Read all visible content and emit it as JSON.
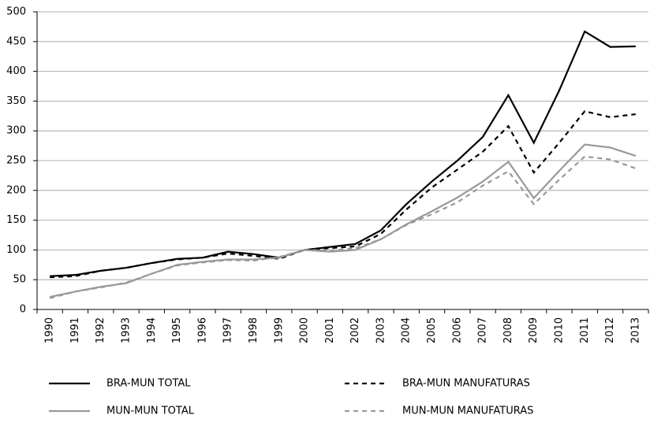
{
  "chart_data": {
    "type": "line",
    "categories": [
      "1990",
      "1991",
      "1992",
      "1993",
      "1994",
      "1995",
      "1996",
      "1997",
      "1998",
      "1999",
      "2000",
      "2001",
      "2002",
      "2003",
      "2004",
      "2005",
      "2006",
      "2007",
      "2008",
      "2009",
      "2010",
      "2011",
      "2012",
      "2013"
    ],
    "series": [
      {
        "name": "BRA-MUN TOTAL",
        "color": "#000000",
        "dashed": false,
        "values": [
          56,
          58,
          65,
          70,
          78,
          85,
          87,
          97,
          93,
          87,
          100,
          105,
          110,
          133,
          177,
          215,
          250,
          290,
          360,
          280,
          368,
          467,
          441,
          442
        ]
      },
      {
        "name": "BRA-MUN MANUFATURAS",
        "color": "#000000",
        "dashed": true,
        "values": [
          54,
          56,
          65,
          70,
          78,
          84,
          87,
          94,
          90,
          85,
          100,
          103,
          106,
          127,
          168,
          205,
          235,
          265,
          308,
          230,
          280,
          333,
          323,
          328
        ]
      },
      {
        "name": "MUN-MUN TOTAL",
        "color": "#999999",
        "dashed": false,
        "values": [
          21,
          30,
          38,
          44,
          60,
          75,
          80,
          84,
          84,
          87,
          100,
          97,
          100,
          118,
          143,
          165,
          188,
          215,
          248,
          187,
          233,
          277,
          272,
          258
        ]
      },
      {
        "name": "MUN-MUN MANUFATURAS",
        "color": "#999999",
        "dashed": true,
        "values": [
          19,
          30,
          37,
          45,
          60,
          74,
          79,
          83,
          82,
          88,
          100,
          99,
          103,
          118,
          142,
          160,
          180,
          208,
          232,
          177,
          218,
          257,
          252,
          237
        ]
      }
    ],
    "ylim": [
      0,
      500
    ],
    "yticks": [
      0,
      50,
      100,
      150,
      200,
      250,
      300,
      350,
      400,
      450,
      500
    ],
    "grid": true
  }
}
